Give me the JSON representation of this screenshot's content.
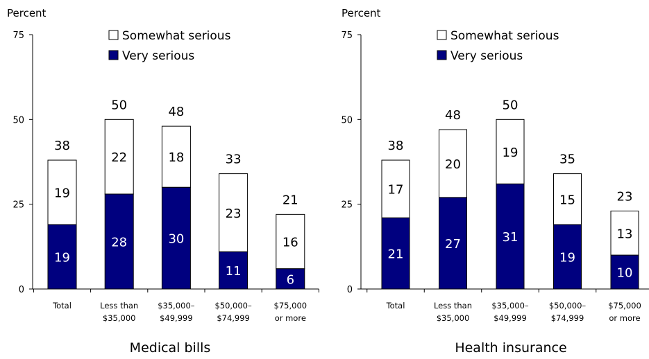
{
  "colors": {
    "very_serious": "#00007f",
    "somewhat_serious": "#ffffff",
    "stroke": "#000000"
  },
  "chart_data": [
    {
      "type": "bar",
      "stacked": true,
      "title": "Medical bills",
      "ylabel": "Percent",
      "ylim": [
        0,
        75
      ],
      "yticks": [
        0,
        25,
        50,
        75
      ],
      "categories": [
        [
          "Total"
        ],
        [
          "Less than",
          "$35,000"
        ],
        [
          "$35,000–",
          "$49,999"
        ],
        [
          "$50,000–",
          "$74,999"
        ],
        [
          "$75,000",
          "or more"
        ]
      ],
      "series": [
        {
          "name": "Very serious",
          "values": [
            19,
            28,
            30,
            11,
            6
          ]
        },
        {
          "name": "Somewhat serious",
          "values": [
            19,
            22,
            18,
            23,
            16
          ]
        }
      ],
      "totals": [
        38,
        50,
        48,
        33,
        21
      ],
      "legend": "top"
    },
    {
      "type": "bar",
      "stacked": true,
      "title": "Health insurance",
      "ylabel": "Percent",
      "ylim": [
        0,
        75
      ],
      "yticks": [
        0,
        25,
        50,
        75
      ],
      "categories": [
        [
          "Total"
        ],
        [
          "Less than",
          "$35,000"
        ],
        [
          "$35,000–",
          "$49,999"
        ],
        [
          "$50,000–",
          "$74,999"
        ],
        [
          "$75,000",
          "or more"
        ]
      ],
      "series": [
        {
          "name": "Very serious",
          "values": [
            21,
            27,
            31,
            19,
            10
          ]
        },
        {
          "name": "Somewhat serious",
          "values": [
            17,
            20,
            19,
            15,
            13
          ]
        }
      ],
      "totals": [
        38,
        48,
        50,
        35,
        23
      ],
      "legend": "top"
    }
  ]
}
